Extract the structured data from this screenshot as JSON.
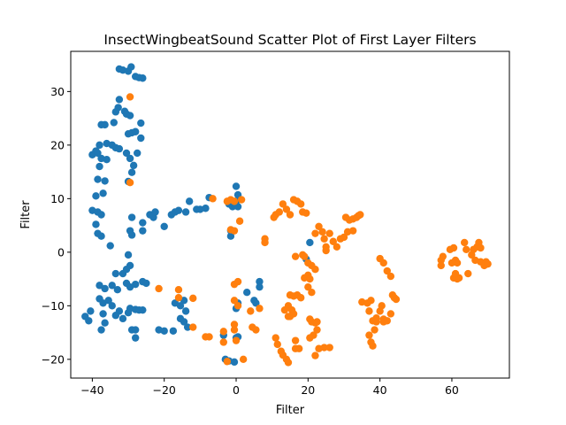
{
  "chart_data": {
    "type": "scatter",
    "title": "InsectWingbeatSound Scatter Plot of First Layer Filters",
    "xlabel": "Filter",
    "ylabel": "Filter",
    "xlim": [
      -46,
      76
    ],
    "ylim": [
      -23.5,
      37.5
    ],
    "xticks": [
      -40,
      -20,
      0,
      20,
      40,
      60
    ],
    "yticks": [
      -20,
      -10,
      0,
      10,
      20,
      30
    ],
    "grid": false,
    "legend": "none",
    "series": [
      {
        "color": "#1f77b4",
        "points": [
          [
            -32.5,
            34.2
          ],
          [
            -31.5,
            34.0
          ],
          [
            -30.0,
            33.8
          ],
          [
            -29.2,
            34.6
          ],
          [
            -28.0,
            32.8
          ],
          [
            -27.0,
            32.6
          ],
          [
            -26.0,
            32.5
          ],
          [
            -32.5,
            28.5
          ],
          [
            -32.8,
            27.0
          ],
          [
            -31.0,
            26.3
          ],
          [
            -30.5,
            25.8
          ],
          [
            -29.5,
            25.5
          ],
          [
            -33.5,
            26.2
          ],
          [
            -37.5,
            23.8
          ],
          [
            -36.5,
            23.8
          ],
          [
            -34.0,
            24.2
          ],
          [
            -26.5,
            24.1
          ],
          [
            -30.0,
            22.1
          ],
          [
            -29.0,
            22.3
          ],
          [
            -28.0,
            22.5
          ],
          [
            -26.5,
            21.3
          ],
          [
            -38.0,
            20.0
          ],
          [
            -36.0,
            20.3
          ],
          [
            -34.5,
            20.0
          ],
          [
            -33.5,
            19.5
          ],
          [
            -32.5,
            19.3
          ],
          [
            -39.0,
            18.9
          ],
          [
            -40.0,
            18.2
          ],
          [
            -38.5,
            18.5
          ],
          [
            -37.5,
            17.5
          ],
          [
            -36.0,
            17.3
          ],
          [
            -30.5,
            18.5
          ],
          [
            -29.5,
            17.5
          ],
          [
            -27.5,
            18.5
          ],
          [
            -28.5,
            16.2
          ],
          [
            -38.0,
            16.0
          ],
          [
            -29.0,
            14.9
          ],
          [
            -36.5,
            13.3
          ],
          [
            -38.5,
            13.6
          ],
          [
            -37.0,
            11.0
          ],
          [
            -39.0,
            10.5
          ],
          [
            -30.0,
            13.2
          ],
          [
            -40.0,
            7.8
          ],
          [
            -38.5,
            7.5
          ],
          [
            -37.5,
            7.0
          ],
          [
            -29.0,
            6.5
          ],
          [
            -26.0,
            5.5
          ],
          [
            -26.0,
            4.0
          ],
          [
            -29.5,
            4.0
          ],
          [
            -29.0,
            3.2
          ],
          [
            -39.0,
            5.2
          ],
          [
            -38.5,
            3.5
          ],
          [
            -37.5,
            3.0
          ],
          [
            -35.0,
            1.2
          ],
          [
            -30.0,
            -0.5
          ],
          [
            -29.5,
            -2.5
          ],
          [
            -33.5,
            -4.0
          ],
          [
            -31.5,
            -4.0
          ],
          [
            -30.5,
            -3.2
          ],
          [
            -38.0,
            -6.2
          ],
          [
            -36.5,
            -6.8
          ],
          [
            -34.5,
            -6.2
          ],
          [
            -33.0,
            -7.0
          ],
          [
            -30.5,
            -5.8
          ],
          [
            -29.5,
            -6.5
          ],
          [
            -28.0,
            -6.0
          ],
          [
            -26.0,
            -5.5
          ],
          [
            -25.0,
            -5.8
          ],
          [
            -38.0,
            -8.7
          ],
          [
            -37.0,
            -9.5
          ],
          [
            -35.5,
            -9.0
          ],
          [
            -34.5,
            -10.0
          ],
          [
            -32.5,
            -11.0
          ],
          [
            -29.5,
            -10.5
          ],
          [
            -28.0,
            -10.7
          ],
          [
            -27.0,
            -10.8
          ],
          [
            -26.0,
            -10.8
          ],
          [
            -40.5,
            -11.0
          ],
          [
            -42.0,
            -12.0
          ],
          [
            -41.0,
            -12.8
          ],
          [
            -37.0,
            -11.5
          ],
          [
            -33.5,
            -11.8
          ],
          [
            -31.5,
            -12.4
          ],
          [
            -30.0,
            -11.3
          ],
          [
            -36.5,
            -13.2
          ],
          [
            -37.5,
            -14.5
          ],
          [
            -29.0,
            -14.5
          ],
          [
            -28.0,
            -14.5
          ],
          [
            -28.0,
            -16.0
          ],
          [
            -24.0,
            7.0
          ],
          [
            -23.0,
            6.5
          ],
          [
            -22.5,
            7.5
          ],
          [
            -20.0,
            4.8
          ],
          [
            -18.0,
            7.0
          ],
          [
            -17.0,
            7.5
          ],
          [
            -16.0,
            7.8
          ],
          [
            -14.0,
            7.5
          ],
          [
            -13.0,
            9.5
          ],
          [
            -11.0,
            8.0
          ],
          [
            -10.0,
            8.0
          ],
          [
            -8.5,
            8.2
          ],
          [
            -7.5,
            10.2
          ],
          [
            -17.0,
            -9.5
          ],
          [
            -15.5,
            -10.0
          ],
          [
            -14.5,
            -9.0
          ],
          [
            -14.0,
            -11.0
          ],
          [
            -15.5,
            -12.4
          ],
          [
            -14.5,
            -13.0
          ],
          [
            -13.5,
            -14.0
          ],
          [
            -21.5,
            -14.5
          ],
          [
            -20.0,
            -14.7
          ],
          [
            -17.5,
            -14.7
          ],
          [
            0.0,
            12.3
          ],
          [
            0.5,
            10.7
          ],
          [
            0.0,
            9.5
          ],
          [
            -1.0,
            8.5
          ],
          [
            0.5,
            8.5
          ],
          [
            -2.0,
            9.0
          ],
          [
            -1.5,
            3.0
          ],
          [
            -1.5,
            4.0
          ],
          [
            0.5,
            -9.5
          ],
          [
            0.0,
            -10.5
          ],
          [
            3.0,
            -7.5
          ],
          [
            5.0,
            -9.0
          ],
          [
            5.5,
            -9.5
          ],
          [
            6.5,
            -6.5
          ],
          [
            6.5,
            -5.5
          ],
          [
            -3.5,
            -15.5
          ],
          [
            -3.0,
            -20.0
          ],
          [
            -2.0,
            -20.3
          ],
          [
            -0.5,
            -20.5
          ],
          [
            0.0,
            -16.0
          ],
          [
            0.5,
            -15.8
          ],
          [
            20.5,
            1.8
          ],
          [
            19.5,
            -1.3
          ]
        ]
      },
      {
        "color": "#ff7f0e",
        "points": [
          [
            -29.5,
            29.0
          ],
          [
            -29.5,
            13.0
          ],
          [
            -21.5,
            -6.8
          ],
          [
            -16.0,
            -7.0
          ],
          [
            -16.0,
            -8.5
          ],
          [
            -12.0,
            -8.6
          ],
          [
            -12.0,
            -14.0
          ],
          [
            -8.5,
            -15.8
          ],
          [
            -7.5,
            -15.8
          ],
          [
            -6.5,
            10.0
          ],
          [
            -3.5,
            -14.8
          ],
          [
            -3.5,
            -16.8
          ],
          [
            -2.5,
            -20.4
          ],
          [
            -2.5,
            9.5
          ],
          [
            -1.5,
            9.8
          ],
          [
            -0.5,
            9.5
          ],
          [
            1.5,
            9.8
          ],
          [
            -1.5,
            4.2
          ],
          [
            -0.5,
            4.0
          ],
          [
            1.0,
            5.8
          ],
          [
            -0.5,
            -6.0
          ],
          [
            0.5,
            -5.5
          ],
          [
            -0.5,
            -9.0
          ],
          [
            0.5,
            -10.0
          ],
          [
            -0.5,
            -13.5
          ],
          [
            -0.5,
            -14.5
          ],
          [
            0.0,
            -16.5
          ],
          [
            2.0,
            -20.0
          ],
          [
            4.0,
            -11.0
          ],
          [
            4.5,
            -14.0
          ],
          [
            5.5,
            -14.5
          ],
          [
            6.5,
            -10.5
          ],
          [
            8.0,
            1.8
          ],
          [
            8.0,
            2.5
          ],
          [
            10.5,
            6.5
          ],
          [
            11.0,
            7.0
          ],
          [
            12.0,
            7.5
          ],
          [
            13.0,
            9.0
          ],
          [
            14.0,
            8.0
          ],
          [
            15.0,
            7.0
          ],
          [
            16.0,
            9.8
          ],
          [
            17.0,
            9.5
          ],
          [
            18.0,
            9.0
          ],
          [
            18.5,
            7.5
          ],
          [
            19.5,
            7.3
          ],
          [
            16.5,
            -0.8
          ],
          [
            18.5,
            -0.5
          ],
          [
            19.0,
            -0.8
          ],
          [
            20.0,
            -2.0
          ],
          [
            21.0,
            -2.5
          ],
          [
            22.0,
            -3.2
          ],
          [
            23.0,
            4.8
          ],
          [
            22.0,
            3.5
          ],
          [
            24.0,
            3.8
          ],
          [
            24.5,
            2.5
          ],
          [
            25.0,
            1.0
          ],
          [
            25.0,
            0.3
          ],
          [
            26.0,
            3.5
          ],
          [
            27.0,
            2.0
          ],
          [
            28.0,
            1.0
          ],
          [
            29.0,
            2.5
          ],
          [
            30.0,
            2.8
          ],
          [
            31.5,
            6.0
          ],
          [
            32.5,
            6.2
          ],
          [
            33.5,
            6.5
          ],
          [
            34.0,
            6.8
          ],
          [
            34.5,
            7.0
          ],
          [
            30.5,
            6.5
          ],
          [
            31.0,
            3.8
          ],
          [
            32.5,
            4.0
          ],
          [
            15.0,
            -8.0
          ],
          [
            16.0,
            -8.2
          ],
          [
            17.0,
            -8.0
          ],
          [
            18.0,
            -8.5
          ],
          [
            19.0,
            -4.8
          ],
          [
            20.0,
            -4.3
          ],
          [
            20.5,
            -5.0
          ],
          [
            20.0,
            -6.5
          ],
          [
            21.0,
            -7.5
          ],
          [
            13.5,
            -10.8
          ],
          [
            14.5,
            -10.0
          ],
          [
            15.5,
            -10.8
          ],
          [
            16.0,
            -11.5
          ],
          [
            14.5,
            -12.0
          ],
          [
            15.0,
            -12.0
          ],
          [
            20.5,
            -12.5
          ],
          [
            21.0,
            -13.0
          ],
          [
            22.0,
            -13.2
          ],
          [
            22.5,
            -13.0
          ],
          [
            22.5,
            -14.5
          ],
          [
            21.5,
            -15.5
          ],
          [
            20.5,
            -16.0
          ],
          [
            22.0,
            -19.3
          ],
          [
            23.0,
            -18.0
          ],
          [
            24.5,
            -17.8
          ],
          [
            26.0,
            -17.8
          ],
          [
            11.0,
            -16.0
          ],
          [
            11.5,
            -17.2
          ],
          [
            12.5,
            -18.5
          ],
          [
            13.0,
            -19.2
          ],
          [
            14.0,
            -20.0
          ],
          [
            14.5,
            -20.6
          ],
          [
            16.5,
            -18.0
          ],
          [
            17.5,
            -18.0
          ],
          [
            16.5,
            -16.5
          ],
          [
            35.0,
            -9.3
          ],
          [
            36.5,
            -9.5
          ],
          [
            37.0,
            -11.0
          ],
          [
            37.5,
            -9.0
          ],
          [
            38.0,
            -12.8
          ],
          [
            39.0,
            -12.3
          ],
          [
            40.0,
            -11.0
          ],
          [
            40.5,
            -10.0
          ],
          [
            41.0,
            -12.5
          ],
          [
            41.0,
            -13.0
          ],
          [
            42.0,
            -12.8
          ],
          [
            43.0,
            -11.5
          ],
          [
            43.5,
            -8.0
          ],
          [
            44.0,
            -8.5
          ],
          [
            44.5,
            -8.8
          ],
          [
            42.0,
            -3.5
          ],
          [
            43.0,
            -4.5
          ],
          [
            41.0,
            -2.0
          ],
          [
            40.0,
            -1.2
          ],
          [
            37.0,
            -15.5
          ],
          [
            37.5,
            -16.8
          ],
          [
            38.0,
            -17.5
          ],
          [
            38.5,
            -14.5
          ],
          [
            39.0,
            -13.0
          ],
          [
            57.0,
            -1.5
          ],
          [
            57.5,
            -0.8
          ],
          [
            57.0,
            -2.5
          ],
          [
            59.5,
            0.5
          ],
          [
            60.5,
            0.8
          ],
          [
            61.0,
            -1.5
          ],
          [
            61.5,
            -2.0
          ],
          [
            60.0,
            -2.0
          ],
          [
            60.5,
            -4.8
          ],
          [
            61.5,
            -5.0
          ],
          [
            62.0,
            -4.8
          ],
          [
            61.0,
            -4.0
          ],
          [
            63.5,
            1.8
          ],
          [
            64.0,
            0.5
          ],
          [
            64.5,
            -4.0
          ],
          [
            65.5,
            -0.5
          ],
          [
            66.0,
            0.5
          ],
          [
            67.0,
            1.0
          ],
          [
            67.5,
            1.8
          ],
          [
            68.0,
            0.8
          ],
          [
            68.0,
            -1.8
          ],
          [
            69.0,
            -2.5
          ],
          [
            69.5,
            -1.8
          ],
          [
            70.0,
            -2.2
          ],
          [
            66.5,
            -1.5
          ]
        ]
      }
    ]
  }
}
